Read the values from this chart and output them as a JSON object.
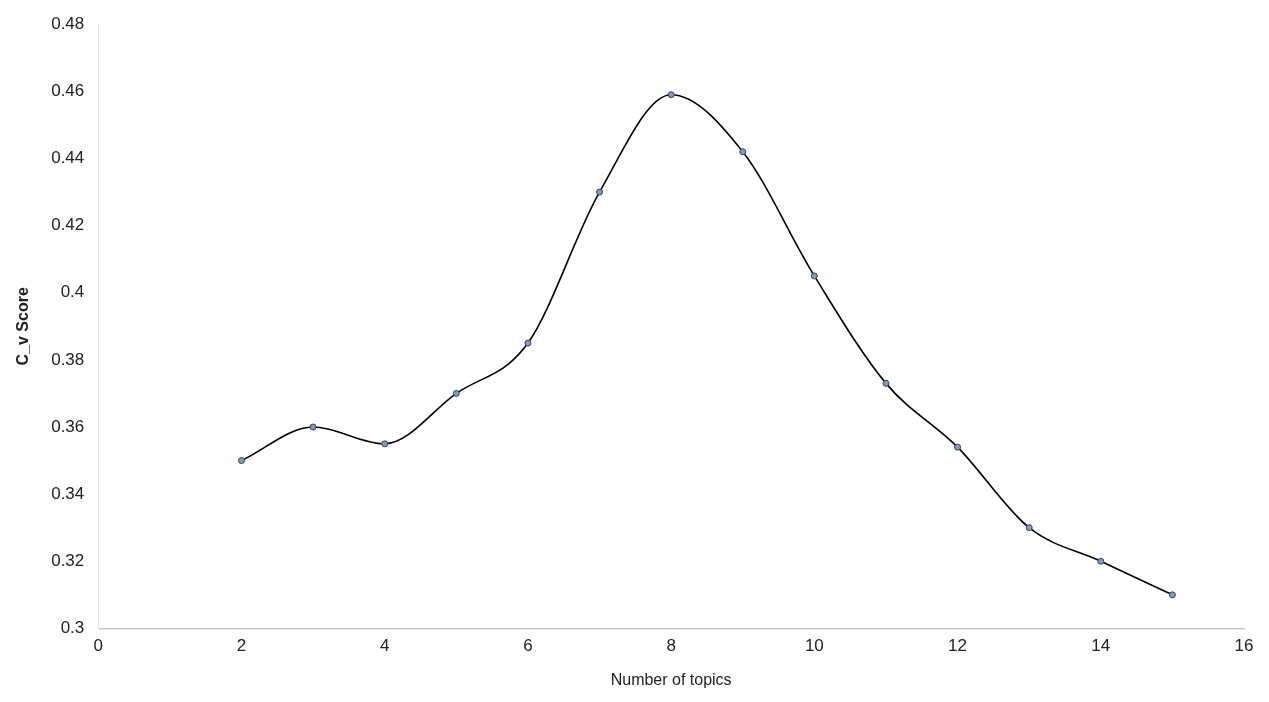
{
  "chart_data": {
    "type": "line",
    "xlabel": "Number of topics",
    "ylabel": "C_v Score",
    "x": [
      2,
      3,
      4,
      5,
      6,
      7,
      8,
      9,
      10,
      11,
      12,
      13,
      14,
      15
    ],
    "series": [
      {
        "color": "#000000",
        "values": [
          0.35,
          0.36,
          0.355,
          0.37,
          0.385,
          0.43,
          0.459,
          0.442,
          0.405,
          0.373,
          0.354,
          0.33,
          0.32,
          0.31
        ]
      }
    ],
    "xlim": [
      0,
      16
    ],
    "xticks": [
      0,
      2,
      4,
      6,
      8,
      10,
      12,
      14,
      16
    ],
    "ylim": [
      0.3,
      0.48
    ],
    "yticks": [
      0.3,
      {
        "value": 0.32,
        "label": "0.32"
      },
      {
        "value": 0.34,
        "label": "0.34"
      },
      {
        "value": 0.36,
        "label": "0.36"
      },
      {
        "value": 0.38,
        "label": "0.38"
      },
      0.4,
      {
        "value": 0.42,
        "label": "0.42"
      },
      {
        "value": 0.44,
        "label": "0.44"
      },
      {
        "value": 0.46,
        "label": "0.46"
      },
      {
        "value": 0.48,
        "label": "0.48"
      }
    ],
    "grid": false,
    "legend": false,
    "marker": "circle",
    "line_style": "solid"
  }
}
